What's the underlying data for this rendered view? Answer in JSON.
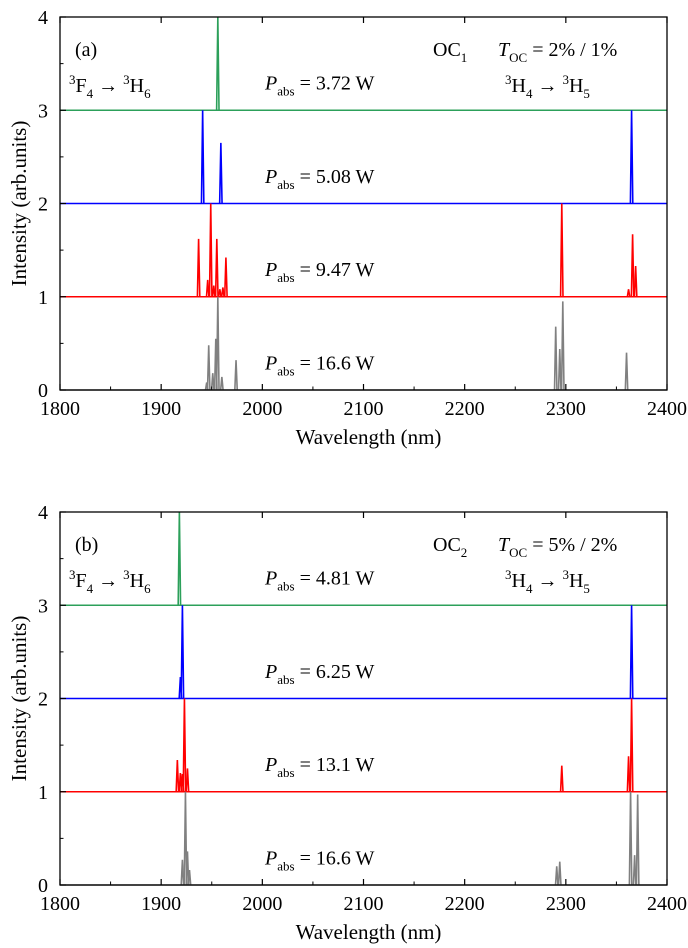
{
  "chart_data": [
    {
      "type": "line",
      "panel_label": "(a)",
      "xlabel": "Wavelength (nm)",
      "ylabel": "Intensity (arb.units)",
      "xlim": [
        1800,
        2400
      ],
      "ylim": [
        0,
        4
      ],
      "x_ticks": [
        1800,
        1900,
        2000,
        2100,
        2200,
        2300,
        2400
      ],
      "y_ticks": [
        0,
        1,
        2,
        3,
        4
      ],
      "grid": false,
      "legend": "none",
      "text": {
        "oc_main": "OC",
        "oc_sub": "1",
        "toc_main": "T",
        "toc_sub": "OC",
        "toc_value": " = 2% / 1%",
        "t1_sup_a": "3",
        "t1_a": "F",
        "t1_sub_a": "4",
        "t1_arrow": " → ",
        "t1_sup_b": "3",
        "t1_b": "H",
        "t1_sub_b": "6",
        "t2_sup_a": "3",
        "t2_a": "H",
        "t2_sub_a": "4",
        "t2_arrow": " → ",
        "t2_sup_b": "3",
        "t2_b": "H",
        "t2_sub_b": "5",
        "p_main": "P",
        "p_sub": "abs"
      },
      "series": [
        {
          "power": "3.72 W",
          "offset": 3,
          "color": "#2ca05a",
          "peaks": [
            [
              1956,
              1.0
            ]
          ]
        },
        {
          "power": "5.08 W",
          "offset": 2,
          "color": "#0000ff",
          "peaks": [
            [
              1941,
              1.0
            ],
            [
              1959,
              0.65
            ],
            [
              2365,
              1.0
            ]
          ]
        },
        {
          "power": "9.47 W",
          "offset": 1,
          "color": "#ff0000",
          "peaks": [
            [
              1937,
              0.62
            ],
            [
              1946,
              0.18
            ],
            [
              1949,
              1.0
            ],
            [
              1952,
              0.12
            ],
            [
              1955,
              0.62
            ],
            [
              1958,
              0.08
            ],
            [
              1961,
              0.1
            ],
            [
              1964,
              0.42
            ],
            [
              2296,
              1.0
            ],
            [
              2362,
              0.08
            ],
            [
              2366,
              0.67
            ],
            [
              2369,
              0.33
            ]
          ]
        },
        {
          "power": "16.6 W",
          "offset": 0,
          "color": "#808080",
          "peaks": [
            [
              1945,
              0.08
            ],
            [
              1947,
              0.48
            ],
            [
              1951,
              0.18
            ],
            [
              1954,
              0.55
            ],
            [
              1956,
              1.0
            ],
            [
              1960,
              0.14
            ],
            [
              1974,
              0.32
            ],
            [
              2290,
              0.68
            ],
            [
              2294,
              0.44
            ],
            [
              2297,
              0.95
            ],
            [
              2360,
              0.4
            ]
          ]
        }
      ]
    },
    {
      "type": "line",
      "panel_label": "(b)",
      "xlabel": "Wavelength (nm)",
      "ylabel": "Intensity (arb.units)",
      "xlim": [
        1800,
        2400
      ],
      "ylim": [
        0,
        4
      ],
      "x_ticks": [
        1800,
        1900,
        2000,
        2100,
        2200,
        2300,
        2400
      ],
      "y_ticks": [
        0,
        1,
        2,
        3,
        4
      ],
      "grid": false,
      "legend": "none",
      "text": {
        "oc_main": "OC",
        "oc_sub": "2",
        "toc_main": "T",
        "toc_sub": "OC",
        "toc_value": " = 5% / 2%",
        "t1_sup_a": "3",
        "t1_a": "F",
        "t1_sub_a": "4",
        "t1_arrow": " → ",
        "t1_sup_b": "3",
        "t1_b": "H",
        "t1_sub_b": "6",
        "t2_sup_a": "3",
        "t2_a": "H",
        "t2_sub_a": "4",
        "t2_arrow": " → ",
        "t2_sup_b": "3",
        "t2_b": "H",
        "t2_sub_b": "5",
        "p_main": "P",
        "p_sub": "abs"
      },
      "series": [
        {
          "power": "4.81 W",
          "offset": 3,
          "color": "#2ca05a",
          "peaks": [
            [
              1918,
              1.0
            ]
          ]
        },
        {
          "power": "6.25 W",
          "offset": 2,
          "color": "#0000ff",
          "peaks": [
            [
              1919,
              0.23
            ],
            [
              1921,
              1.0
            ],
            [
              2365,
              1.0
            ]
          ]
        },
        {
          "power": "13.1 W",
          "offset": 1,
          "color": "#ff0000",
          "peaks": [
            [
              1916,
              0.34
            ],
            [
              1919,
              0.2
            ],
            [
              1921,
              0.19
            ],
            [
              1923,
              1.0
            ],
            [
              1926,
              0.25
            ],
            [
              2296,
              0.28
            ],
            [
              2362,
              0.38
            ],
            [
              2365,
              1.0
            ]
          ]
        },
        {
          "power": "16.6 W",
          "offset": 0,
          "color": "#808080",
          "peaks": [
            [
              1921,
              0.27
            ],
            [
              1924,
              1.0
            ],
            [
              1926,
              0.36
            ],
            [
              1928,
              0.16
            ],
            [
              2291,
              0.2
            ],
            [
              2294,
              0.25
            ],
            [
              2364,
              1.0
            ],
            [
              2368,
              0.32
            ],
            [
              2371,
              0.97
            ]
          ]
        }
      ]
    }
  ]
}
